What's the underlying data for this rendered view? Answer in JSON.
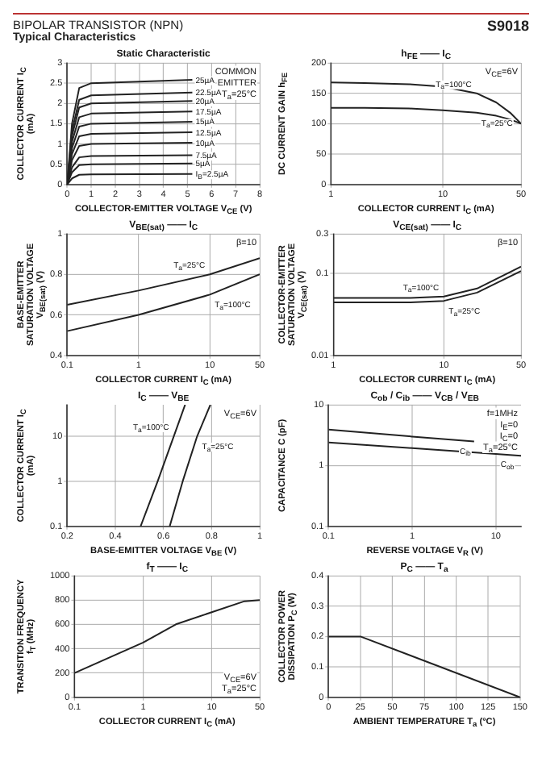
{
  "chart_data": [
    {
      "type": "other",
      "title": "BIPOLAR TRANSISTOR (NPN)",
      "subtitle": "Typical Characteristics",
      "annotations": [
        "S9018"
      ]
    },
    {
      "type": "line",
      "title": "Static Characteristic",
      "xlabel": "COLLECTOR-EMITTER VOLTAGE V$_{CE}$ (V)",
      "ylabel": "COLLECTOR CURRENT I$_{C}$ (mA)",
      "xlim": [
        0,
        8
      ],
      "ylim": [
        0,
        3.0
      ],
      "xticks": [
        0,
        1,
        2,
        3,
        4,
        5,
        6,
        7,
        8
      ],
      "yticks": [
        0,
        0.5,
        1.0,
        1.5,
        2.0,
        2.5,
        3.0
      ],
      "grid": true,
      "annotations": [
        "COMMON",
        "EMITTER",
        "T$_{a}$=25°C"
      ],
      "x": [
        0,
        0.2,
        0.5,
        1,
        5.2
      ],
      "series": [
        {
          "name": "25µA",
          "color": "#222222",
          "values": [
            0,
            1.5,
            2.38,
            2.5,
            2.58
          ]
        },
        {
          "name": "22.5µA",
          "color": "#222222",
          "values": [
            0,
            1.32,
            2.09,
            2.2,
            2.27
          ]
        },
        {
          "name": "20µA",
          "color": "#222222",
          "values": [
            0,
            1.2,
            1.9,
            2.0,
            2.06
          ]
        },
        {
          "name": "17.5µA",
          "color": "#222222",
          "values": [
            0,
            1.05,
            1.66,
            1.75,
            1.8
          ]
        },
        {
          "name": "15µA",
          "color": "#222222",
          "values": [
            0,
            0.9,
            1.43,
            1.5,
            1.55
          ]
        },
        {
          "name": "12.5µA",
          "color": "#222222",
          "values": [
            0,
            0.75,
            1.19,
            1.25,
            1.29
          ]
        },
        {
          "name": "10µA",
          "color": "#222222",
          "values": [
            0,
            0.6,
            0.95,
            1.0,
            1.03
          ]
        },
        {
          "name": "7.5µA",
          "color": "#222222",
          "values": [
            0,
            0.42,
            0.67,
            0.7,
            0.72
          ]
        },
        {
          "name": "5µA",
          "color": "#222222",
          "values": [
            0,
            0.3,
            0.48,
            0.5,
            0.52
          ]
        },
        {
          "name": "I$_{B}$=2.5µA",
          "color": "#222222",
          "values": [
            0,
            0.15,
            0.24,
            0.25,
            0.26
          ]
        }
      ]
    },
    {
      "type": "line",
      "title": "h$_{FE}$ —— I$_{C}$",
      "xlabel": "COLLECTOR CURRENT I$_{C}$ (mA)",
      "ylabel": "DC CURRENT GAIN h$_{FE}$",
      "log": "x",
      "xlim": [
        1,
        50
      ],
      "ylim": [
        0,
        200
      ],
      "xticks": [
        1,
        10,
        50
      ],
      "yticks": [
        0,
        50,
        100,
        150,
        200
      ],
      "grid": true,
      "annotations": [
        "V$_{CE}$=6V"
      ],
      "x": [
        1,
        2,
        5,
        10,
        20,
        30,
        40,
        50
      ],
      "series": [
        {
          "name": "T$_{a}$=100°C",
          "color": "#222222",
          "values": [
            168,
            167,
            165,
            161,
            150,
            135,
            118,
            100
          ]
        },
        {
          "name": "T$_{a}$=25°C",
          "color": "#222222",
          "values": [
            126,
            126,
            125,
            122,
            118,
            113,
            107,
            100
          ]
        }
      ]
    },
    {
      "type": "line",
      "title": "V$_{BE(sat)}$ —— I$_{C}$",
      "xlabel": "COLLECTOR CURRENT I$_{C}$ (mA)",
      "ylabel": "BASE-EMITTER SATURATION VOLTAGE V$_{BE(sat)}$ (V)",
      "log": "x",
      "xlim": [
        0.1,
        50
      ],
      "ylim": [
        0.4,
        1.0
      ],
      "xticks": [
        0.1,
        1,
        10,
        50
      ],
      "yticks": [
        0.4,
        0.6,
        0.8,
        1.0
      ],
      "grid": true,
      "annotations": [
        "β=10"
      ],
      "x": [
        0.1,
        1,
        10,
        50
      ],
      "series": [
        {
          "name": "T$_{a}$=25°C",
          "color": "#222222",
          "values": [
            0.65,
            0.72,
            0.8,
            0.88
          ]
        },
        {
          "name": "T$_{a}$=100°C",
          "color": "#222222",
          "values": [
            0.52,
            0.6,
            0.7,
            0.8
          ]
        }
      ]
    },
    {
      "type": "line",
      "title": "V$_{CE(sat)}$ —— I$_{C}$",
      "xlabel": "COLLECTOR CURRENT I$_{C}$ (mA)",
      "ylabel": "COLLECTOR-EMITTER SATURATION VOLTAGE V$_{CE(sat)}$ (V)",
      "log": "xy",
      "xlim": [
        1,
        50
      ],
      "ylim": [
        0.01,
        0.3
      ],
      "xticks": [
        1,
        10,
        50
      ],
      "yticks": [
        0.01,
        0.1,
        0.3
      ],
      "grid": true,
      "annotations": [
        "β=10"
      ],
      "x": [
        1,
        5,
        10,
        20,
        50
      ],
      "series": [
        {
          "name": "T$_{a}$=100°C",
          "color": "#222222",
          "values": [
            0.05,
            0.05,
            0.052,
            0.065,
            0.12
          ]
        },
        {
          "name": "T$_{a}$=25°C",
          "color": "#222222",
          "values": [
            0.044,
            0.044,
            0.046,
            0.058,
            0.106
          ]
        }
      ]
    },
    {
      "type": "line",
      "title": "I$_{C}$ —— V$_{BE}$",
      "xlabel": "BASE-EMITTER VOLTAGE V$_{BE}$ (V)",
      "ylabel": "COLLECTOR CURRENT I$_{C}$ (mA)",
      "log": "y",
      "xlim": [
        0.2,
        1.0
      ],
      "ylim": [
        0.1,
        50
      ],
      "xticks": [
        0.2,
        0.4,
        0.6,
        0.8,
        1.0
      ],
      "yticks": [
        0.1,
        1,
        10
      ],
      "grid": true,
      "annotations": [
        "V$_{CE}$=6V"
      ],
      "series": [
        {
          "name": "T$_{a}$=100°C",
          "color": "#222222",
          "x": [
            0.505,
            0.576,
            0.643,
            0.69
          ],
          "values": [
            0.1,
            1,
            10,
            50
          ]
        },
        {
          "name": "T$_{a}$=25°C",
          "color": "#222222",
          "x": [
            0.626,
            0.68,
            0.74,
            0.795
          ],
          "values": [
            0.1,
            1,
            10,
            50
          ]
        }
      ]
    },
    {
      "type": "line",
      "title": "C$_{ob}$ / C$_{ib}$ —— V$_{CB}$ / V$_{EB}$",
      "xlabel": "REVERSE VOLTAGE V$_{R}$ (V)",
      "ylabel": "CAPACITANCE C (pF)",
      "log": "xy",
      "xlim": [
        0.1,
        20
      ],
      "ylim": [
        0.1,
        10
      ],
      "xticks": [
        0.1,
        1,
        10
      ],
      "yticks": [
        0.1,
        1,
        10
      ],
      "grid": true,
      "annotations": [
        "f=1MHz",
        "I$_{E}$=0",
        "I$_{C}$=0",
        "T$_{a}$=25°C"
      ],
      "series": [
        {
          "name": "C$_{ib}$",
          "color": "#222222",
          "x": [
            0.1,
            1,
            5.5
          ],
          "values": [
            3.9,
            3.0,
            2.5
          ]
        },
        {
          "name": "C$_{ob}$",
          "color": "#222222",
          "x": [
            0.1,
            1,
            10,
            20
          ],
          "values": [
            2.4,
            1.94,
            1.55,
            1.45
          ]
        }
      ]
    },
    {
      "type": "line",
      "title": "f$_{T}$ —— I$_{C}$",
      "xlabel": "COLLECTOR CURRENT I$_{C}$ (mA)",
      "ylabel": "TRANSITION FREQUENCY f$_{T}$ (MHz)",
      "log": "x",
      "xlim": [
        0.1,
        50
      ],
      "ylim": [
        0,
        1000
      ],
      "xticks": [
        0.1,
        1,
        10,
        50
      ],
      "yticks": [
        0,
        200,
        400,
        600,
        800,
        1000
      ],
      "grid": true,
      "annotations": [
        "V$_{CE}$=6V",
        "T$_{a}$=25°C"
      ],
      "x": [
        0.1,
        1,
        3,
        10,
        30,
        50
      ],
      "series": [
        {
          "color": "#222222",
          "values": [
            200,
            450,
            600,
            700,
            790,
            800
          ]
        }
      ]
    },
    {
      "type": "line",
      "title": "P$_{C}$ —— T$_{a}$",
      "xlabel": "AMBIENT TEMPERATURE T$_{a}$ (°C)",
      "ylabel": "COLLECTOR POWER DISSIPATION P$_{C}$ (W)",
      "xlim": [
        0,
        150
      ],
      "ylim": [
        0,
        0.4
      ],
      "xticks": [
        0,
        25,
        50,
        75,
        100,
        125,
        150
      ],
      "yticks": [
        0,
        0.1,
        0.2,
        0.3,
        0.4
      ],
      "grid": true,
      "x": [
        0,
        25,
        150
      ],
      "series": [
        {
          "color": "#222222",
          "values": [
            0.2,
            0.2,
            0
          ]
        }
      ]
    }
  ]
}
